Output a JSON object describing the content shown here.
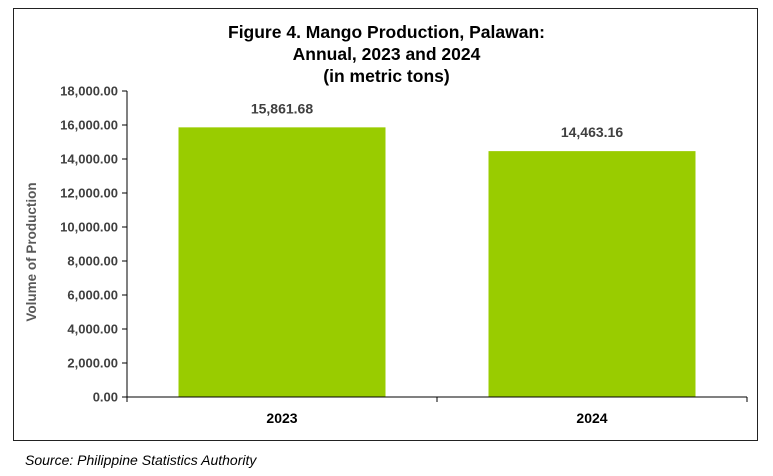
{
  "chart_data": {
    "type": "bar",
    "title_lines": [
      "Figure 4. Mango Production, Palawan:",
      "Annual, 2023 and 2024",
      "(in metric tons)"
    ],
    "xlabel": "",
    "ylabel": "Volume of Production",
    "categories": [
      "2023",
      "2024"
    ],
    "values": [
      15861.68,
      14463.16
    ],
    "data_labels": [
      "15,861.68",
      "14,463.16"
    ],
    "ylim": [
      0,
      18000
    ],
    "yticks": [
      0,
      2000,
      4000,
      6000,
      8000,
      10000,
      12000,
      14000,
      16000,
      18000
    ],
    "ytick_labels": [
      "0.00",
      "2,000.00",
      "4,000.00",
      "6,000.00",
      "8,000.00",
      "10,000.00",
      "12,000.00",
      "14,000.00",
      "16,000.00",
      "18,000.00"
    ],
    "grid": false,
    "legend": "none",
    "bar_color": "#99CC00"
  },
  "source": "Source: Philippine Statistics Authority"
}
